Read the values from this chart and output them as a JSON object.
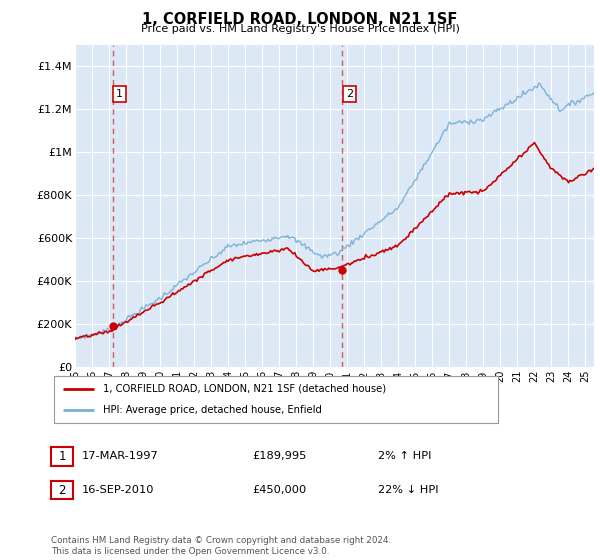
{
  "title": "1, CORFIELD ROAD, LONDON, N21 1SF",
  "subtitle": "Price paid vs. HM Land Registry's House Price Index (HPI)",
  "legend_label_red": "1, CORFIELD ROAD, LONDON, N21 1SF (detached house)",
  "legend_label_blue": "HPI: Average price, detached house, Enfield",
  "transaction1_date": "17-MAR-1997",
  "transaction1_price": "£189,995",
  "transaction1_hpi": "2% ↑ HPI",
  "transaction2_date": "16-SEP-2010",
  "transaction2_price": "£450,000",
  "transaction2_hpi": "22% ↓ HPI",
  "footer": "Contains HM Land Registry data © Crown copyright and database right 2024.\nThis data is licensed under the Open Government Licence v3.0.",
  "ylim": [
    0,
    1500000
  ],
  "yticks": [
    0,
    200000,
    400000,
    600000,
    800000,
    1000000,
    1200000,
    1400000
  ],
  "ytick_labels": [
    "£0",
    "£200K",
    "£400K",
    "£600K",
    "£800K",
    "£1M",
    "£1.2M",
    "£1.4M"
  ],
  "plot_bg_color": "#dce8f5",
  "red_color": "#cc0000",
  "blue_color": "#7ab0d4",
  "dashed_color": "#cc4444",
  "transaction1_year": 1997.21,
  "transaction2_year": 2010.71,
  "transaction1_price_val": 189995,
  "transaction2_price_val": 450000,
  "xmin": 1995.0,
  "xmax": 2025.5
}
